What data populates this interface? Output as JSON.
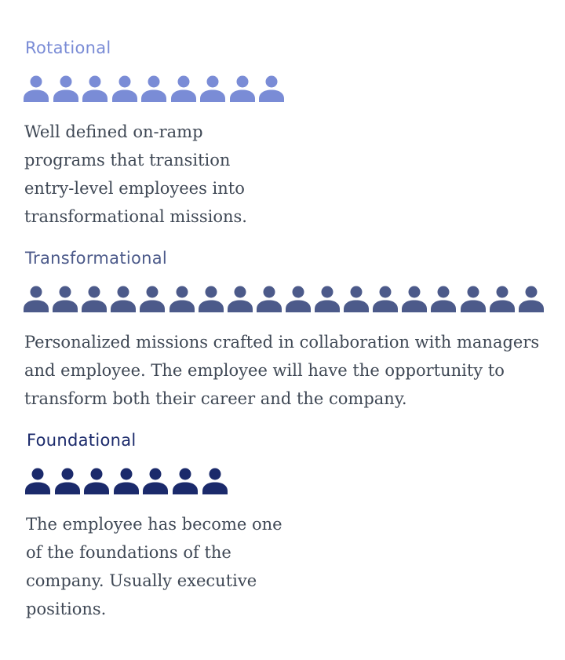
{
  "sections": [
    {
      "id": "rotational",
      "title": "Rotational",
      "color": "#7a8cd6",
      "icon": "person-icon",
      "person_count": 9,
      "description": "Well defined on-ramp programs that transition entry-level employees into transformational missions."
    },
    {
      "id": "transformational",
      "title": "Transformational",
      "color": "#4c5a8a",
      "icon": "person-icon",
      "person_count": 18,
      "description": "Personalized missions crafted in collaboration with managers and employee. The employee will have the opportunity to transform both their career and the company."
    },
    {
      "id": "foundational",
      "title": "Foundational",
      "color": "#1b2a6b",
      "icon": "person-icon",
      "person_count": 7,
      "description": "The employee has become one of the foundations of the company. Usually executive positions."
    }
  ]
}
